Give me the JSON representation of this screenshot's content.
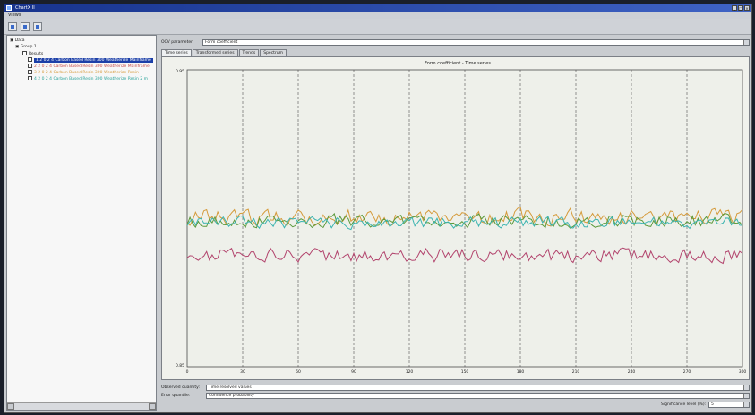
{
  "window": {
    "title": "ChartX II",
    "menu": [
      "Views"
    ]
  },
  "toolbar": {
    "icons": [
      "save-icon",
      "open-folder-icon",
      "print-icon"
    ]
  },
  "tree": {
    "root": "Data",
    "group": "Group 1",
    "subgroup": "Results",
    "items": [
      {
        "label": "1 2 0 2 4  Carbon Based Resin 300 Weatherize Mainframe",
        "color": "#1c3fa8",
        "selected": true
      },
      {
        "label": "2 2 0 2 4  Carbon Based Resin 300 Weatherize Mainframe",
        "color": "#c44a4a"
      },
      {
        "label": "3 2 0 2 4  Carbon Based Resin 300 Weatherize Resin",
        "color": "#d59a3a"
      },
      {
        "label": "4 2 0 2 4  Carbon Based Resin 300 Weatherize Resin 2 m",
        "color": "#2aa39a"
      }
    ]
  },
  "controls": {
    "property_label": "OCV parameter:",
    "property_value": "Form coefficient",
    "tabs": [
      "Time series",
      "Transformed series",
      "Trends",
      "Spectrum"
    ],
    "observed_label": "Observed quantity:",
    "observed_value": "Time resolved values",
    "error_label": "Error quantile:",
    "error_value": "Confidence probability",
    "significance_label": "Significance level (%):",
    "significance_value": "5"
  },
  "chart_data": {
    "type": "line",
    "title": "Form coefficient - Time series",
    "xlabel": "",
    "ylabel": "",
    "xlim": [
      0,
      300
    ],
    "ylim": [
      0.85,
      0.95
    ],
    "y_ticks": [
      "0.95",
      "0.85"
    ],
    "x_ticks": [
      "0",
      "30",
      "60",
      "90",
      "120",
      "150",
      "180",
      "210",
      "240",
      "270",
      "300"
    ],
    "grid": "vertical dashed",
    "series": [
      {
        "color": "#d59a3a",
        "base": 0.9004,
        "amp": 0.0024,
        "seed": 1
      },
      {
        "color": "#5c9a3c",
        "base": 0.8992,
        "amp": 0.002,
        "seed": 2
      },
      {
        "color": "#3bb4b0",
        "base": 0.8985,
        "amp": 0.0018,
        "seed": 3
      },
      {
        "color": "#b2446d",
        "base": 0.8875,
        "amp": 0.0022,
        "seed": 4
      }
    ]
  }
}
